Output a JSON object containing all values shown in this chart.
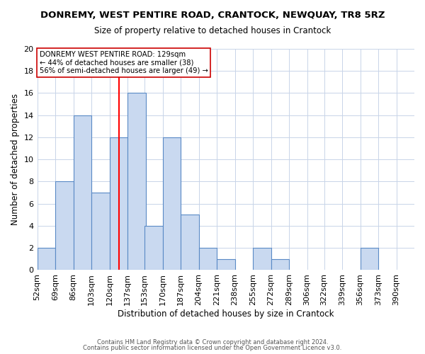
{
  "title": "DONREMY, WEST PENTIRE ROAD, CRANTOCK, NEWQUAY, TR8 5RZ",
  "subtitle": "Size of property relative to detached houses in Crantock",
  "xlabel": "Distribution of detached houses by size in Crantock",
  "ylabel": "Number of detached properties",
  "footer_line1": "Contains HM Land Registry data © Crown copyright and database right 2024.",
  "footer_line2": "Contains public sector information licensed under the Open Government Licence v3.0.",
  "bin_labels": [
    "52sqm",
    "69sqm",
    "86sqm",
    "103sqm",
    "120sqm",
    "137sqm",
    "153sqm",
    "170sqm",
    "187sqm",
    "204sqm",
    "221sqm",
    "238sqm",
    "255sqm",
    "272sqm",
    "289sqm",
    "306sqm",
    "322sqm",
    "339sqm",
    "356sqm",
    "373sqm",
    "390sqm"
  ],
  "bin_edges": [
    52,
    69,
    86,
    103,
    120,
    137,
    153,
    170,
    187,
    204,
    221,
    238,
    255,
    272,
    289,
    306,
    322,
    339,
    356,
    373,
    390
  ],
  "counts": [
    2,
    8,
    14,
    7,
    12,
    16,
    4,
    12,
    5,
    2,
    1,
    0,
    2,
    1,
    0,
    0,
    0,
    0,
    2,
    0,
    0
  ],
  "property_value": 129,
  "annotation_title": "DONREMY WEST PENTIRE ROAD: 129sqm",
  "annotation_line2": "← 44% of detached houses are smaller (38)",
  "annotation_line3": "56% of semi-detached houses are larger (49) →",
  "bar_color": "#c9d9f0",
  "bar_edge_color": "#5a8ac6",
  "vline_color": "red",
  "ylim": [
    0,
    20
  ],
  "background_color": "#ffffff",
  "grid_color": "#c8d4e8"
}
